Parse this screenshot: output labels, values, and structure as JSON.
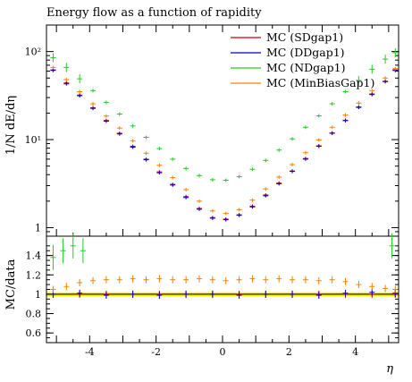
{
  "chart_data": [
    {
      "type": "line",
      "title": "Energy flow as a function of rapidity",
      "ylabel": "1/N dE/dη",
      "xlabel": "",
      "yscale": "log",
      "xlim": [
        -5.3,
        5.3
      ],
      "ylim": [
        0.8,
        200
      ],
      "yticks": [
        {
          "value": 1,
          "label": "1"
        },
        {
          "value": 10,
          "label": "10¹"
        },
        {
          "value": 100,
          "label": "10²"
        }
      ],
      "legend_position": "top-right",
      "series": [
        {
          "name": "MC (SDgap1)",
          "color": "#cc0000",
          "marker": "errorbar",
          "x": [
            -5.1,
            -4.7,
            -4.3,
            -3.9,
            -3.5,
            -3.1,
            -2.7,
            -2.3,
            -1.9,
            -1.5,
            -1.1,
            -0.7,
            -0.3,
            0.1,
            0.5,
            0.9,
            1.3,
            1.7,
            2.1,
            2.5,
            2.9,
            3.3,
            3.7,
            4.1,
            4.5,
            4.9,
            5.2
          ],
          "y": [
            62,
            44,
            32,
            23,
            16.5,
            11.8,
            8.4,
            6.0,
            4.3,
            3.1,
            2.25,
            1.65,
            1.3,
            1.25,
            1.4,
            1.75,
            2.35,
            3.2,
            4.4,
            6.1,
            8.5,
            11.9,
            16.6,
            23.5,
            33,
            46,
            62
          ]
        },
        {
          "name": "MC (DDgap1)",
          "color": "#0000cc",
          "marker": "errorbar",
          "x": [
            -5.1,
            -4.7,
            -4.3,
            -3.9,
            -3.5,
            -3.1,
            -2.7,
            -2.3,
            -1.9,
            -1.5,
            -1.1,
            -0.7,
            -0.3,
            0.1,
            0.5,
            0.9,
            1.3,
            1.7,
            2.1,
            2.5,
            2.9,
            3.3,
            3.7,
            4.1,
            4.5,
            4.9,
            5.2
          ],
          "y": [
            61,
            43,
            31.5,
            22.6,
            16.2,
            11.6,
            8.2,
            5.9,
            4.2,
            3.05,
            2.2,
            1.62,
            1.28,
            1.23,
            1.38,
            1.72,
            2.3,
            3.15,
            4.35,
            6.0,
            8.4,
            11.8,
            16.4,
            23.2,
            32.5,
            45.5,
            61
          ]
        },
        {
          "name": "MC (NDgap1)",
          "color": "#22cc22",
          "marker": "errorbar",
          "x": [
            -5.1,
            -4.7,
            -4.3,
            -3.9,
            -3.5,
            -3.1,
            -2.7,
            -2.3,
            -1.9,
            -1.5,
            -1.1,
            -0.7,
            -0.3,
            0.1,
            0.5,
            0.9,
            1.3,
            1.7,
            2.1,
            2.5,
            2.9,
            3.3,
            3.7,
            4.1,
            4.5,
            4.9,
            5.2
          ],
          "y": [
            85,
            66,
            49,
            36,
            26.5,
            19.5,
            14.3,
            10.6,
            7.9,
            6.0,
            4.7,
            3.9,
            3.5,
            3.45,
            3.8,
            4.6,
            5.8,
            7.6,
            10.2,
            13.8,
            18.6,
            25.5,
            35,
            47,
            63,
            82,
            97
          ]
        },
        {
          "name": "MC (MinBiasGap1)",
          "color": "#ff7f00",
          "marker": "errorbar",
          "x": [
            -5.1,
            -4.7,
            -4.3,
            -3.9,
            -3.5,
            -3.1,
            -2.7,
            -2.3,
            -1.9,
            -1.5,
            -1.1,
            -0.7,
            -0.3,
            0.1,
            0.5,
            0.9,
            1.3,
            1.7,
            2.1,
            2.5,
            2.9,
            3.3,
            3.7,
            4.1,
            4.5,
            4.9,
            5.2
          ],
          "y": [
            66,
            48,
            35,
            25.5,
            18.5,
            13.5,
            9.7,
            7.0,
            5.1,
            3.7,
            2.7,
            2.0,
            1.55,
            1.45,
            1.6,
            2.05,
            2.75,
            3.75,
            5.2,
            7.1,
            9.9,
            13.8,
            19,
            26,
            36,
            50,
            64
          ]
        }
      ]
    },
    {
      "type": "line",
      "title": "",
      "ylabel": "MC/data",
      "xlabel": "η",
      "xlim": [
        -5.3,
        5.3
      ],
      "ylim": [
        0.5,
        1.6
      ],
      "xticks": [
        {
          "value": -4,
          "label": "-4"
        },
        {
          "value": -2,
          "label": "-2"
        },
        {
          "value": 0,
          "label": "0"
        },
        {
          "value": 2,
          "label": "2"
        },
        {
          "value": 4,
          "label": "4"
        }
      ],
      "yticks": [
        {
          "value": 0.6,
          "label": "0.6"
        },
        {
          "value": 0.8,
          "label": "0.8"
        },
        {
          "value": 1.0,
          "label": "1"
        },
        {
          "value": 1.2,
          "label": "1.2"
        },
        {
          "value": 1.4,
          "label": "1.4"
        }
      ],
      "reference_line": 1.0,
      "data_band": {
        "color": "#ffee00",
        "lower": 0.98,
        "upper": 1.02
      },
      "series": [
        {
          "name": "MC (SDgap1)",
          "color": "#cc0000",
          "x": [
            -5.1,
            -4.3,
            -3.5,
            -2.7,
            -1.9,
            -1.1,
            -0.3,
            0.5,
            1.3,
            2.1,
            2.9,
            3.7,
            4.5,
            5.2
          ],
          "y": [
            1.0,
            1.0,
            1.0,
            1.0,
            1.0,
            1.0,
            1.0,
            1.0,
            1.0,
            1.0,
            1.0,
            1.0,
            1.0,
            1.0
          ]
        },
        {
          "name": "MC (DDgap1)",
          "color": "#0000cc",
          "x": [
            -5.1,
            -4.3,
            -3.5,
            -2.7,
            -1.9,
            -1.1,
            -0.3,
            0.5,
            1.3,
            2.1,
            2.9,
            3.7,
            4.5,
            5.2
          ],
          "y": [
            1.0,
            1.01,
            0.99,
            1.0,
            0.99,
            1.0,
            1.0,
            0.99,
            1.0,
            1.0,
            0.99,
            1.01,
            1.02,
            1.01
          ]
        },
        {
          "name": "MC (NDgap1)",
          "color": "#22cc22",
          "x": [
            -5.1,
            -4.8,
            -4.5,
            -4.2,
            5.1
          ],
          "y": [
            1.38,
            1.45,
            1.5,
            1.45,
            1.5
          ]
        },
        {
          "name": "MC (MinBiasGap1)",
          "color": "#ff7f00",
          "x": [
            -5.1,
            -4.7,
            -4.3,
            -3.9,
            -3.5,
            -3.1,
            -2.7,
            -2.3,
            -1.9,
            -1.5,
            -1.1,
            -0.7,
            -0.3,
            0.1,
            0.5,
            0.9,
            1.3,
            1.7,
            2.1,
            2.5,
            2.9,
            3.3,
            3.7,
            4.1,
            4.5,
            4.9,
            5.2
          ],
          "y": [
            1.05,
            1.08,
            1.12,
            1.14,
            1.15,
            1.15,
            1.16,
            1.15,
            1.16,
            1.15,
            1.15,
            1.16,
            1.15,
            1.14,
            1.15,
            1.16,
            1.15,
            1.16,
            1.15,
            1.15,
            1.14,
            1.15,
            1.13,
            1.1,
            1.08,
            1.06,
            1.05
          ]
        }
      ]
    }
  ]
}
